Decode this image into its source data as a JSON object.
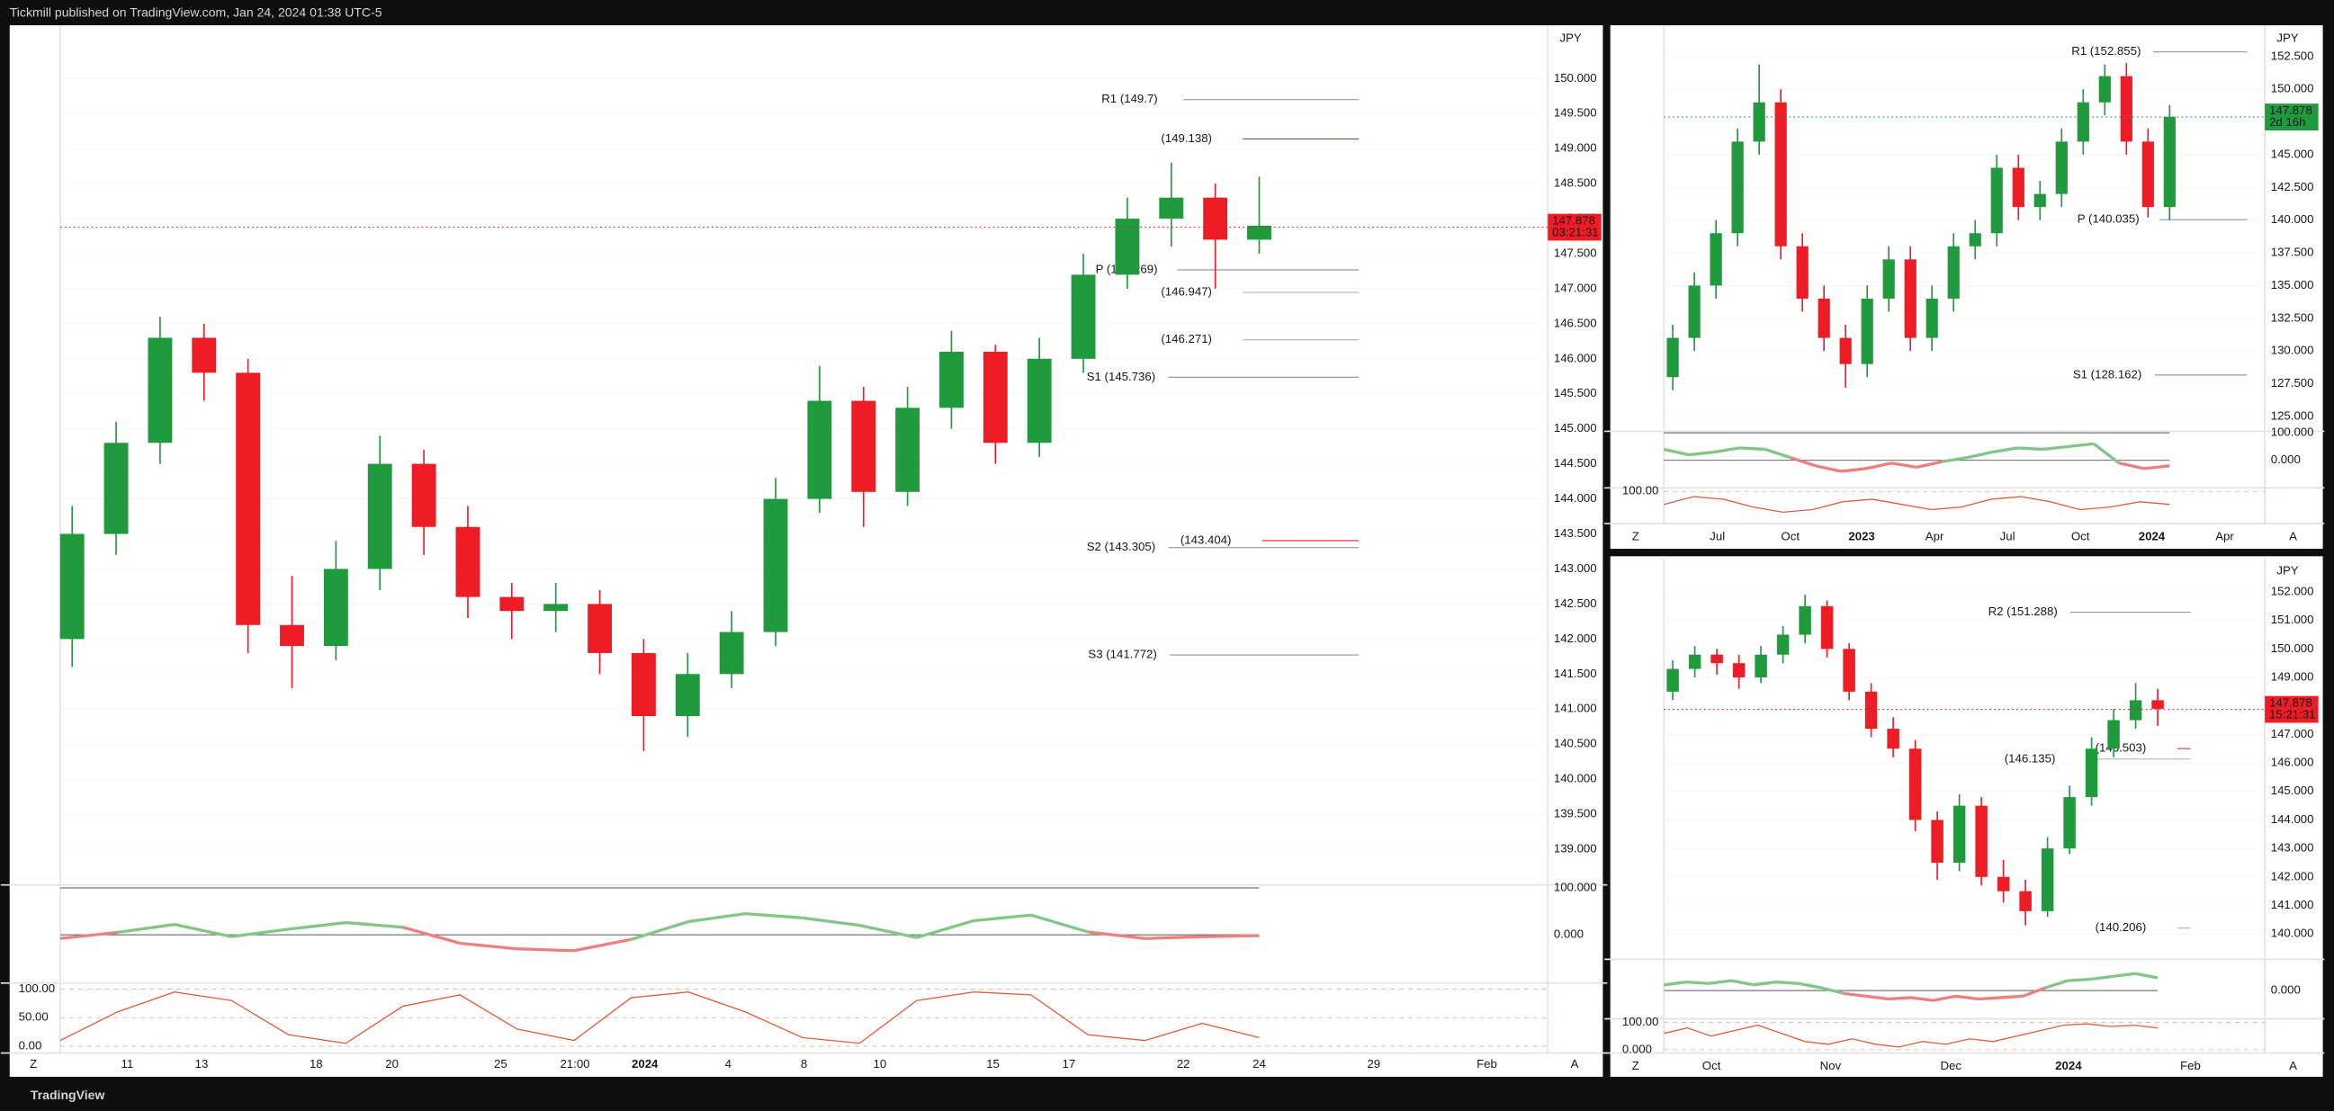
{
  "header": {
    "text": "Tickmill published on TradingView.com, Jan 24, 2024 01:38 UTC-5"
  },
  "footer": {
    "brand": "TradingView"
  },
  "chart_data": [
    {
      "type": "candlestick",
      "currency": "JPY",
      "buttons": [
        "Z",
        "A"
      ],
      "up_color": "#1f9a3c",
      "down_color": "#ee1c25",
      "price": 147.878,
      "countdown": "03:21:31",
      "price_color": "#ee1c25",
      "x_labels": [
        "11",
        "13",
        "18",
        "20",
        "25",
        "21:00",
        "2024",
        "4",
        "8",
        "10",
        "15",
        "17",
        "22",
        "24",
        "29",
        "Feb"
      ],
      "ylim": [
        138.49,
        150.76
      ],
      "yticks": [
        {
          "value": 139,
          "label": "139.000"
        },
        {
          "value": 139.5,
          "label": "139.500"
        },
        {
          "value": 140,
          "label": "140.000"
        },
        {
          "value": 140.5,
          "label": "140.500"
        },
        {
          "value": 141,
          "label": "141.000"
        },
        {
          "value": 141.5,
          "label": "141.500"
        },
        {
          "value": 142,
          "label": "142.000"
        },
        {
          "value": 142.5,
          "label": "142.500"
        },
        {
          "value": 143,
          "label": "143.000"
        },
        {
          "value": 143.5,
          "label": "143.500"
        },
        {
          "value": 144,
          "label": "144.000"
        },
        {
          "value": 144.5,
          "label": "144.500"
        },
        {
          "value": 145,
          "label": "145.000"
        },
        {
          "value": 145.5,
          "label": "145.500"
        },
        {
          "value": 146,
          "label": "146.000"
        },
        {
          "value": 146.5,
          "label": "146.500"
        },
        {
          "value": 147,
          "label": "147.000"
        },
        {
          "value": 147.5,
          "label": "147.500"
        },
        {
          "value": 148,
          "label": "148.000"
        },
        {
          "value": 148.5,
          "label": "148.500"
        },
        {
          "value": 149,
          "label": "149.000"
        },
        {
          "value": 149.5,
          "label": "149.500"
        },
        {
          "value": 150,
          "label": "150.000"
        }
      ],
      "candles": [
        {
          "open": 142.0,
          "high": 143.9,
          "low": 141.6,
          "close": 143.5
        },
        {
          "open": 143.5,
          "high": 145.1,
          "low": 143.2,
          "close": 144.8
        },
        {
          "open": 144.8,
          "high": 146.6,
          "low": 144.5,
          "close": 146.3
        },
        {
          "open": 146.3,
          "high": 146.5,
          "low": 145.4,
          "close": 145.8
        },
        {
          "open": 145.8,
          "high": 146.0,
          "low": 141.8,
          "close": 142.2
        },
        {
          "open": 142.2,
          "high": 142.9,
          "low": 141.3,
          "close": 141.9
        },
        {
          "open": 141.9,
          "high": 143.4,
          "low": 141.7,
          "close": 143.0
        },
        {
          "open": 143.0,
          "high": 144.9,
          "low": 142.7,
          "close": 144.5
        },
        {
          "open": 144.5,
          "high": 144.7,
          "low": 143.2,
          "close": 143.6
        },
        {
          "open": 143.6,
          "high": 143.9,
          "low": 142.3,
          "close": 142.6
        },
        {
          "open": 142.6,
          "high": 142.8,
          "low": 142.0,
          "close": 142.4
        },
        {
          "open": 142.4,
          "high": 142.8,
          "low": 142.1,
          "close": 142.5
        },
        {
          "open": 142.5,
          "high": 142.7,
          "low": 141.5,
          "close": 141.8
        },
        {
          "open": 141.8,
          "high": 142.0,
          "low": 140.4,
          "close": 140.9
        },
        {
          "open": 140.9,
          "high": 141.8,
          "low": 140.6,
          "close": 141.5
        },
        {
          "open": 141.5,
          "high": 142.4,
          "low": 141.3,
          "close": 142.1
        },
        {
          "open": 142.1,
          "high": 144.3,
          "low": 141.9,
          "close": 144.0
        },
        {
          "open": 144.0,
          "high": 145.9,
          "low": 143.8,
          "close": 145.4
        },
        {
          "open": 145.4,
          "high": 145.6,
          "low": 143.6,
          "close": 144.1
        },
        {
          "open": 144.1,
          "high": 145.6,
          "low": 143.9,
          "close": 145.3
        },
        {
          "open": 145.3,
          "high": 146.4,
          "low": 145.0,
          "close": 146.1
        },
        {
          "open": 146.1,
          "high": 146.2,
          "low": 144.5,
          "close": 144.8
        },
        {
          "open": 144.8,
          "high": 146.3,
          "low": 144.6,
          "close": 146.0
        },
        {
          "open": 146.0,
          "high": 147.5,
          "low": 145.8,
          "close": 147.2
        },
        {
          "open": 147.2,
          "high": 148.3,
          "low": 147.0,
          "close": 148.0
        },
        {
          "open": 148.0,
          "high": 148.8,
          "low": 147.6,
          "close": 148.3
        },
        {
          "open": 148.3,
          "high": 148.5,
          "low": 147.0,
          "close": 147.7
        },
        {
          "open": 147.7,
          "high": 148.6,
          "low": 147.5,
          "close": 147.9
        }
      ],
      "annotations": [
        {
          "label": "R1 (149.7)",
          "value": 149.7,
          "color": "#9598a1"
        },
        {
          "label": "(149.138)",
          "value": 149.138,
          "color": "#2e7d32"
        },
        {
          "label": "P (147.269)",
          "value": 147.269,
          "color": "#9598a1"
        },
        {
          "label": "(146.947)",
          "value": 146.947,
          "color": "#b2b5be"
        },
        {
          "label": "(146.271)",
          "value": 146.271,
          "color": "#b2b5be"
        },
        {
          "label": "S1 (145.736)",
          "value": 145.736,
          "color": "#9598a1"
        },
        {
          "label": "(143.404)",
          "value": 143.404,
          "color": "#e53935"
        },
        {
          "label": "S2 (143.305)",
          "value": 143.305,
          "color": "#9598a1"
        },
        {
          "label": "S3 (141.772)",
          "value": 141.772,
          "color": "#9598a1"
        }
      ],
      "oscillator": {
        "ylim": [
          -100,
          100
        ],
        "yticks": [
          {
            "value": 100,
            "label": "100.000"
          },
          {
            "value": 0,
            "label": "0.000"
          }
        ],
        "values": [
          -8,
          5,
          22,
          -4,
          12,
          26,
          16,
          -18,
          -30,
          -34,
          -10,
          28,
          45,
          36,
          20,
          -6,
          30,
          42,
          6,
          -8,
          -4,
          -2
        ]
      },
      "stochastic": {
        "ylim": [
          -12,
          108
        ],
        "yticks": [
          {
            "value": 100,
            "label": "100.00"
          },
          {
            "value": 50,
            "label": "50.00"
          },
          {
            "value": 0,
            "label": "0.00"
          }
        ],
        "values": [
          10,
          60,
          95,
          80,
          20,
          5,
          70,
          90,
          30,
          10,
          85,
          95,
          60,
          15,
          5,
          80,
          95,
          90,
          20,
          10,
          40,
          15
        ]
      }
    },
    {
      "type": "candlestick",
      "currency": "JPY",
      "buttons": [
        "Z",
        "A"
      ],
      "up_color": "#1f9a3c",
      "down_color": "#ee1c25",
      "price": 147.878,
      "countdown": "2d 16h",
      "price_color": "#1f9a3c",
      "x_labels": [
        "Jul",
        "Oct",
        "2023",
        "Apr",
        "Jul",
        "Oct",
        "2024",
        "Apr"
      ],
      "ylim": [
        123.86,
        154.89
      ],
      "yticks": [
        {
          "value": 125,
          "label": "125.000"
        },
        {
          "value": 127.5,
          "label": "127.500"
        },
        {
          "value": 130,
          "label": "130.000"
        },
        {
          "value": 132.5,
          "label": "132.500"
        },
        {
          "value": 135,
          "label": "135.000"
        },
        {
          "value": 137.5,
          "label": "137.500"
        },
        {
          "value": 140,
          "label": "140.000"
        },
        {
          "value": 142.5,
          "label": "142.500"
        },
        {
          "value": 145,
          "label": "145.000"
        },
        {
          "value": 147.5,
          "label": "147.500"
        },
        {
          "value": 150,
          "label": "150.000"
        },
        {
          "value": 152.5,
          "label": "152.500"
        }
      ],
      "candles": [
        {
          "open": 128,
          "high": 132,
          "low": 127,
          "close": 131
        },
        {
          "open": 131,
          "high": 136,
          "low": 130,
          "close": 135
        },
        {
          "open": 135,
          "high": 140,
          "low": 134,
          "close": 139
        },
        {
          "open": 139,
          "high": 147,
          "low": 138,
          "close": 146
        },
        {
          "open": 146,
          "high": 151.9,
          "low": 145,
          "close": 149
        },
        {
          "open": 149,
          "high": 150,
          "low": 137,
          "close": 138
        },
        {
          "open": 138,
          "high": 139,
          "low": 133,
          "close": 134
        },
        {
          "open": 134,
          "high": 135,
          "low": 130,
          "close": 131
        },
        {
          "open": 131,
          "high": 132,
          "low": 127.2,
          "close": 129
        },
        {
          "open": 129,
          "high": 135,
          "low": 128,
          "close": 134
        },
        {
          "open": 134,
          "high": 138,
          "low": 133,
          "close": 137
        },
        {
          "open": 137,
          "high": 138,
          "low": 130,
          "close": 131
        },
        {
          "open": 131,
          "high": 135,
          "low": 130,
          "close": 134
        },
        {
          "open": 134,
          "high": 139,
          "low": 133,
          "close": 138
        },
        {
          "open": 138,
          "high": 140,
          "low": 137,
          "close": 139
        },
        {
          "open": 139,
          "high": 145,
          "low": 138,
          "close": 144
        },
        {
          "open": 144,
          "high": 145,
          "low": 140,
          "close": 141
        },
        {
          "open": 141,
          "high": 143,
          "low": 140,
          "close": 142
        },
        {
          "open": 142,
          "high": 147,
          "low": 141,
          "close": 146
        },
        {
          "open": 146,
          "high": 150,
          "low": 145,
          "close": 149
        },
        {
          "open": 149,
          "high": 151.9,
          "low": 148,
          "close": 151
        },
        {
          "open": 151,
          "high": 152,
          "low": 145,
          "close": 146
        },
        {
          "open": 146,
          "high": 147,
          "low": 140.2,
          "close": 141
        },
        {
          "open": 141,
          "high": 148.8,
          "low": 140,
          "close": 147.9
        }
      ],
      "annotations": [
        {
          "label": "R1 (152.855)",
          "value": 152.855,
          "color": "#9598a1"
        },
        {
          "label": "P (140.035)",
          "value": 140.035,
          "color": "#9598a1"
        },
        {
          "label": "S1 (128.162)",
          "value": 128.162,
          "color": "#9598a1"
        }
      ],
      "oscillator": {
        "ylim": [
          -100,
          100
        ],
        "yticks": [
          {
            "value": 100,
            "label": "100.000"
          },
          {
            "value": 0,
            "label": "0.000"
          }
        ],
        "values": [
          40,
          20,
          30,
          45,
          40,
          10,
          -20,
          -40,
          -30,
          -10,
          -25,
          -5,
          10,
          30,
          45,
          40,
          50,
          60,
          -10,
          -30,
          -20
        ]
      },
      "stochastic": {
        "ylim": [
          -12,
          108
        ],
        "yticks": [
          {
            "value": 100,
            "label": "100.00"
          }
        ],
        "values": [
          50,
          80,
          70,
          40,
          20,
          30,
          60,
          70,
          50,
          30,
          40,
          70,
          80,
          60,
          30,
          40,
          60,
          50
        ]
      }
    },
    {
      "type": "candlestick",
      "currency": "JPY",
      "buttons": [
        "Z",
        "A"
      ],
      "up_color": "#1f9a3c",
      "down_color": "#ee1c25",
      "price": 147.878,
      "countdown": "15:21:31",
      "price_color": "#ee1c25",
      "x_labels": [
        "Oct",
        "Nov",
        "Dec",
        "2024",
        "Feb"
      ],
      "ylim": [
        139.11,
        153.2
      ],
      "yticks": [
        {
          "value": 140,
          "label": "140.000"
        },
        {
          "value": 141,
          "label": "141.000"
        },
        {
          "value": 142,
          "label": "142.000"
        },
        {
          "value": 143,
          "label": "143.000"
        },
        {
          "value": 144,
          "label": "144.000"
        },
        {
          "value": 145,
          "label": "145.000"
        },
        {
          "value": 146,
          "label": "146.000"
        },
        {
          "value": 147,
          "label": "147.000"
        },
        {
          "value": 148,
          "label": "148.000"
        },
        {
          "value": 149,
          "label": "149.000"
        },
        {
          "value": 150,
          "label": "150.000"
        },
        {
          "value": 151,
          "label": "151.000"
        },
        {
          "value": 152,
          "label": "152.000"
        }
      ],
      "candles": [
        {
          "open": 148.5,
          "high": 149.6,
          "low": 148.2,
          "close": 149.3
        },
        {
          "open": 149.3,
          "high": 150.1,
          "low": 149.0,
          "close": 149.8
        },
        {
          "open": 149.8,
          "high": 150.0,
          "low": 149.1,
          "close": 149.5
        },
        {
          "open": 149.5,
          "high": 149.8,
          "low": 148.6,
          "close": 149.0
        },
        {
          "open": 149.0,
          "high": 150.1,
          "low": 148.8,
          "close": 149.8
        },
        {
          "open": 149.8,
          "high": 150.8,
          "low": 149.5,
          "close": 150.5
        },
        {
          "open": 150.5,
          "high": 151.9,
          "low": 150.2,
          "close": 151.5
        },
        {
          "open": 151.5,
          "high": 151.7,
          "low": 149.7,
          "close": 150.0
        },
        {
          "open": 150.0,
          "high": 150.2,
          "low": 148.2,
          "close": 148.5
        },
        {
          "open": 148.5,
          "high": 148.8,
          "low": 146.9,
          "close": 147.2
        },
        {
          "open": 147.2,
          "high": 147.6,
          "low": 146.2,
          "close": 146.5
        },
        {
          "open": 146.5,
          "high": 146.8,
          "low": 143.6,
          "close": 144.0
        },
        {
          "open": 144.0,
          "high": 144.3,
          "low": 141.9,
          "close": 142.5
        },
        {
          "open": 142.5,
          "high": 144.9,
          "low": 142.2,
          "close": 144.5
        },
        {
          "open": 144.5,
          "high": 144.8,
          "low": 141.7,
          "close": 142.0
        },
        {
          "open": 142.0,
          "high": 142.6,
          "low": 141.1,
          "close": 141.5
        },
        {
          "open": 141.5,
          "high": 141.9,
          "low": 140.3,
          "close": 140.8
        },
        {
          "open": 140.8,
          "high": 143.4,
          "low": 140.6,
          "close": 143.0
        },
        {
          "open": 143.0,
          "high": 145.2,
          "low": 142.8,
          "close": 144.8
        },
        {
          "open": 144.8,
          "high": 146.9,
          "low": 144.5,
          "close": 146.5
        },
        {
          "open": 146.5,
          "high": 147.9,
          "low": 146.2,
          "close": 147.5
        },
        {
          "open": 147.5,
          "high": 148.8,
          "low": 147.2,
          "close": 148.2
        },
        {
          "open": 148.2,
          "high": 148.6,
          "low": 147.3,
          "close": 147.9
        }
      ],
      "annotations": [
        {
          "label": "R2 (151.288)",
          "value": 151.288,
          "color": "#9598a1"
        },
        {
          "label": "(146.503)",
          "value": 146.503,
          "color": "#e53935"
        },
        {
          "label": "(146.135)",
          "value": 146.135,
          "color": "#b2b5be"
        },
        {
          "label": "(140.206)",
          "value": 140.206,
          "color": "#b2b5be"
        }
      ],
      "oscillator": {
        "ylim": [
          -100,
          100
        ],
        "yticks": [
          {
            "value": 0,
            "label": "0.000"
          }
        ],
        "values": [
          20,
          30,
          25,
          35,
          20,
          30,
          25,
          10,
          -10,
          -20,
          -30,
          -25,
          -35,
          -20,
          -30,
          -25,
          -20,
          10,
          35,
          40,
          50,
          60,
          45
        ]
      },
      "stochastic": {
        "ylim": [
          -12,
          108
        ],
        "yticks": [
          {
            "value": 100,
            "label": "100.00"
          },
          {
            "value": 0,
            "label": "0.000"
          }
        ],
        "values": [
          60,
          80,
          50,
          70,
          90,
          60,
          30,
          20,
          40,
          20,
          10,
          30,
          20,
          40,
          30,
          50,
          70,
          90,
          95,
          85,
          90,
          80
        ]
      }
    }
  ]
}
